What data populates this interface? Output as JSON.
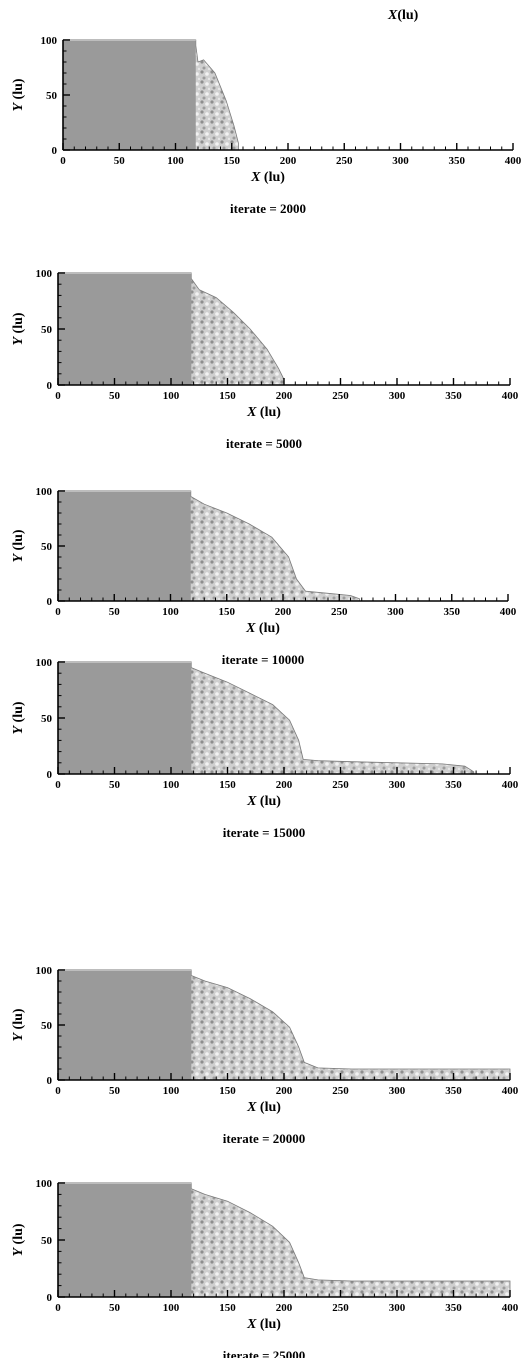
{
  "top_label": {
    "italic": "X",
    "rest": "(lu)"
  },
  "chart_data": [
    {
      "type": "area",
      "title": "iterate = 2000",
      "xlabel": "X (lu)",
      "ylabel": "Y (lu)",
      "xlim": [
        0,
        400
      ],
      "ylim": [
        0,
        100
      ],
      "xticks": [
        "0",
        "50",
        "100",
        "150",
        "200",
        "250",
        "300",
        "350",
        "400"
      ],
      "yticks": [
        "0",
        "50",
        "100"
      ],
      "series": [
        {
          "x": [
            0,
            118,
            118,
            120,
            125,
            135,
            145,
            152,
            156,
            156,
            0
          ],
          "y": [
            100,
            100,
            95,
            80,
            82,
            70,
            45,
            22,
            6,
            0,
            0
          ]
        }
      ]
    },
    {
      "type": "area",
      "title": "iterate = 5000",
      "xlabel": "X (lu)",
      "ylabel": "Y (lu)",
      "xlim": [
        0,
        400
      ],
      "ylim": [
        0,
        100
      ],
      "xticks": [
        "0",
        "50",
        "100",
        "150",
        "200",
        "250",
        "300",
        "350",
        "400"
      ],
      "yticks": [
        "0",
        "50",
        "100"
      ],
      "series": [
        {
          "x": [
            0,
            118,
            118,
            125,
            140,
            155,
            170,
            185,
            195,
            200,
            200,
            0
          ],
          "y": [
            100,
            100,
            95,
            85,
            78,
            65,
            50,
            32,
            15,
            5,
            0,
            0
          ]
        }
      ]
    },
    {
      "type": "area",
      "title": "iterate = 10000",
      "xlabel": "X (lu)",
      "ylabel": "Y (lu)",
      "xlim": [
        0,
        400
      ],
      "ylim": [
        0,
        100
      ],
      "xticks": [
        "0",
        "50",
        "100",
        "150",
        "200",
        "250",
        "300",
        "350",
        "400"
      ],
      "yticks": [
        "0",
        "50",
        "100"
      ],
      "series": [
        {
          "x": [
            0,
            118,
            118,
            130,
            150,
            170,
            190,
            205,
            212,
            220,
            240,
            260,
            268,
            268,
            0
          ],
          "y": [
            100,
            100,
            95,
            88,
            80,
            70,
            58,
            40,
            20,
            9,
            7,
            5,
            2,
            0,
            0
          ]
        }
      ]
    },
    {
      "type": "area",
      "title": "iterate = 15000",
      "xlabel": "X (lu)",
      "ylabel": "Y (lu)",
      "xlim": [
        0,
        400
      ],
      "ylim": [
        0,
        100
      ],
      "xticks": [
        "0",
        "50",
        "100",
        "150",
        "200",
        "250",
        "300",
        "350",
        "400"
      ],
      "yticks": [
        "0",
        "50",
        "100"
      ],
      "series": [
        {
          "x": [
            0,
            118,
            118,
            130,
            150,
            170,
            190,
            205,
            213,
            217,
            230,
            260,
            300,
            340,
            360,
            368,
            368,
            0
          ],
          "y": [
            100,
            100,
            95,
            90,
            82,
            72,
            62,
            48,
            30,
            13,
            12,
            11,
            10,
            9,
            7,
            2,
            0,
            0
          ]
        }
      ]
    },
    {
      "type": "area",
      "title": "iterate = 20000",
      "xlabel": "X (lu)",
      "ylabel": "Y (lu)",
      "xlim": [
        0,
        400
      ],
      "ylim": [
        0,
        100
      ],
      "xticks": [
        "0",
        "50",
        "100",
        "150",
        "200",
        "250",
        "300",
        "350",
        "400"
      ],
      "yticks": [
        "0",
        "50",
        "100"
      ],
      "series": [
        {
          "x": [
            0,
            118,
            118,
            130,
            150,
            170,
            190,
            205,
            213,
            218,
            230,
            260,
            400,
            400,
            0
          ],
          "y": [
            100,
            100,
            95,
            90,
            84,
            74,
            62,
            48,
            30,
            16,
            11,
            10,
            10,
            0,
            0
          ]
        }
      ]
    },
    {
      "type": "area",
      "title": "iterate = 25000",
      "xlabel": "X (lu)",
      "ylabel": "Y (lu)",
      "xlim": [
        0,
        400
      ],
      "ylim": [
        0,
        100
      ],
      "xticks": [
        "0",
        "50",
        "100",
        "150",
        "200",
        "250",
        "300",
        "350",
        "400"
      ],
      "yticks": [
        "0",
        "50",
        "100"
      ],
      "series": [
        {
          "x": [
            0,
            118,
            118,
            130,
            150,
            170,
            190,
            205,
            213,
            218,
            230,
            260,
            400,
            400,
            0
          ],
          "y": [
            100,
            100,
            95,
            90,
            84,
            74,
            62,
            48,
            30,
            17,
            15,
            14,
            14,
            0,
            0
          ]
        }
      ]
    }
  ]
}
